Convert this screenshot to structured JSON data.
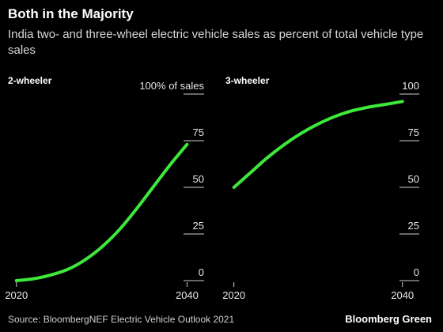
{
  "title": "Both in the Majority",
  "subtitle": "India two- and three-wheel electric vehicle sales as percent of total vehicle type sales",
  "source": "Source: BloombergNEF Electric Vehicle Outlook 2021",
  "brand": "Bloomberg Green",
  "colors": {
    "background": "#000000",
    "line": "#3ee83a",
    "grid": "#cfcfcf",
    "text": "#ffffff"
  },
  "chart_data": [
    {
      "type": "line",
      "title": "2-wheeler",
      "x": [
        2020,
        2022,
        2024,
        2026,
        2028,
        2030,
        2032,
        2034,
        2036,
        2038,
        2040
      ],
      "series": [
        {
          "values": [
            0,
            1,
            3,
            6,
            11,
            18,
            27,
            38,
            50,
            62,
            73
          ]
        }
      ],
      "xticks": [
        "2020",
        "2040"
      ],
      "yticks": [
        "0",
        "25",
        "50",
        "75",
        "100% of sales"
      ],
      "xlim": [
        2019,
        2042
      ],
      "ylim": [
        0,
        100
      ],
      "grid": false
    },
    {
      "type": "line",
      "title": "3-wheeler",
      "x": [
        2020,
        2022,
        2024,
        2026,
        2028,
        2030,
        2032,
        2034,
        2036,
        2038,
        2040
      ],
      "series": [
        {
          "values": [
            50,
            58,
            66,
            73,
            79,
            84,
            88,
            91,
            93,
            94.5,
            96
          ]
        }
      ],
      "xticks": [
        "2020",
        "2040"
      ],
      "yticks": [
        "0",
        "25",
        "50",
        "75",
        "100"
      ],
      "xlim": [
        2019,
        2042
      ],
      "ylim": [
        0,
        100
      ],
      "grid": false
    }
  ]
}
